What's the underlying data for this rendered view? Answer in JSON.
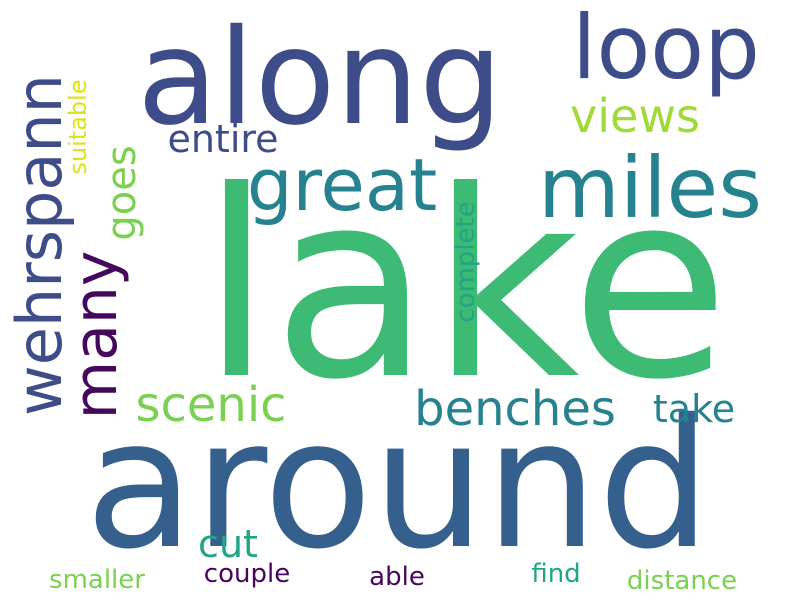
{
  "colors": {
    "background": "#ffffff",
    "green": "#3dbb74",
    "blue": "#355f8d",
    "indigo": "#3e4c8a",
    "teal": "#26828e",
    "teal_green": "#21a585",
    "purple": "#46085c",
    "light_green": "#7ad151",
    "lime": "#a0da39",
    "yellow": "#dde318"
  },
  "words": {
    "lake": "lake",
    "around": "around",
    "along": "along",
    "loop": "loop",
    "miles": "miles",
    "great": "great",
    "wehrspann": "wehrspann",
    "many": "many",
    "benches": "benches",
    "scenic": "scenic",
    "views": "views",
    "entire": "entire",
    "goes": "goes",
    "take": "take",
    "cut": "cut",
    "complete": "complete",
    "suitable": "suitable",
    "smaller": "smaller",
    "couple": "couple",
    "able": "able",
    "find": "find",
    "distance": "distance"
  }
}
